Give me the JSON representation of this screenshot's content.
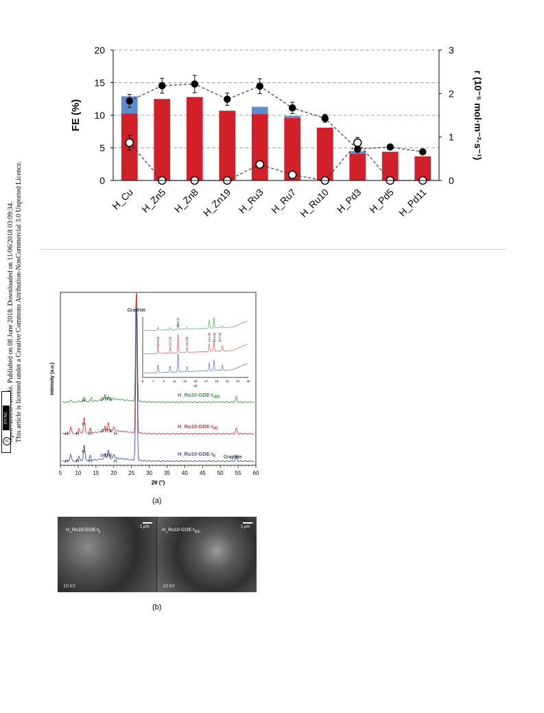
{
  "sidebar": {
    "line1": "Open Access Article. Published on 08 June 2018. Downloaded on 11/06/2018 03:09:34.",
    "line2": "This article is licensed under a Creative Commons Attribution-NonCommercial 3.0 Unported Licence.",
    "badge": "BY-NC",
    "badge_cc": "cc"
  },
  "chart_data": [
    {
      "type": "bar",
      "ylabel": "FE (%)",
      "y2label": "r (10⁻⁵ mol·m⁻²·s⁻¹)",
      "ylim": [
        0,
        20
      ],
      "y2lim": [
        0,
        3
      ],
      "yticks": [
        "0",
        "5",
        "10",
        "15",
        "20"
      ],
      "y2ticks": [
        "0",
        "1",
        "2",
        "3"
      ],
      "categories": [
        "H_Cu",
        "H_Zn5",
        "H_Zn8",
        "H_Zn19",
        "H_Ru3",
        "H_Ru7",
        "H_Ru10",
        "H_Pd3",
        "H_Pd5",
        "H_Pd11"
      ],
      "series": [
        {
          "stack": "red",
          "values": [
            10.3,
            12.5,
            12.8,
            10.7,
            10.2,
            9.6,
            8.1,
            4.1,
            4.4,
            3.7
          ],
          "color": "#d0202a"
        },
        {
          "stack": "blue",
          "values": [
            2.6,
            0,
            0,
            0,
            1.1,
            0.3,
            0,
            0.4,
            0,
            0
          ],
          "color": "#5b8ecf"
        },
        {
          "marker": "filled",
          "axis": "right",
          "values": [
            1.83,
            2.18,
            2.22,
            1.87,
            2.17,
            1.67,
            1.43,
            0.72,
            0.77,
            0.66
          ],
          "errors": [
            0.15,
            0.17,
            0.2,
            0.14,
            0.17,
            0.13,
            0.09,
            0.0,
            0.0,
            0.0
          ],
          "color": "#000000"
        },
        {
          "marker": "open",
          "axis": "right",
          "values": [
            0.87,
            0,
            0,
            0,
            0.37,
            0.13,
            0,
            0.87,
            0,
            0
          ],
          "errors": [
            0.17,
            0,
            0,
            0,
            0,
            0,
            0,
            0.12,
            0,
            0
          ],
          "color": "#000000"
        }
      ],
      "grid": "dashed horizontal"
    },
    {
      "type": "line",
      "xlabel": "2θ (°)",
      "ylabel": "Intensity (a.u.)",
      "xlim": [
        5,
        60
      ],
      "xticks": [
        "5",
        "10",
        "15",
        "20",
        "25",
        "30",
        "35",
        "40",
        "45",
        "50",
        "55",
        "60"
      ],
      "series": [
        {
          "name": "H_Ru10-GDE-t",
          "sub": "300",
          "color": "#2e9a3c"
        },
        {
          "name": "H_Ru10-GDE-t",
          "sub": "45",
          "color": "#e23038"
        },
        {
          "name": "H_Ru10-GDE-t",
          "sub": "0",
          "color": "#3c4ea8"
        }
      ],
      "annotations": [
        "Graphite",
        "PTFE",
        "H",
        "*",
        "Graphite"
      ],
      "inset": {
        "xticks": [
          "5",
          "7",
          "9",
          "11",
          "13",
          "15",
          "17",
          "19",
          "21",
          "23",
          "25"
        ],
        "xlabel": "2θ",
        "peaks": [
          "(2 0 0)",
          "(2 2 0)",
          "(2 2 2)",
          "(4 0 0)",
          "(4 4 0)",
          "(6 0 0)",
          "(6 2 0)"
        ]
      }
    }
  ],
  "captions": {
    "a": "(a)",
    "b": "(b)"
  },
  "sem": {
    "left_label": "H_Ru10-GDE-t",
    "left_sub": "0",
    "right_label": "H_Ru10-GDE-t",
    "right_sub": "300",
    "scale": "1 μm",
    "mag": "10 kX"
  }
}
